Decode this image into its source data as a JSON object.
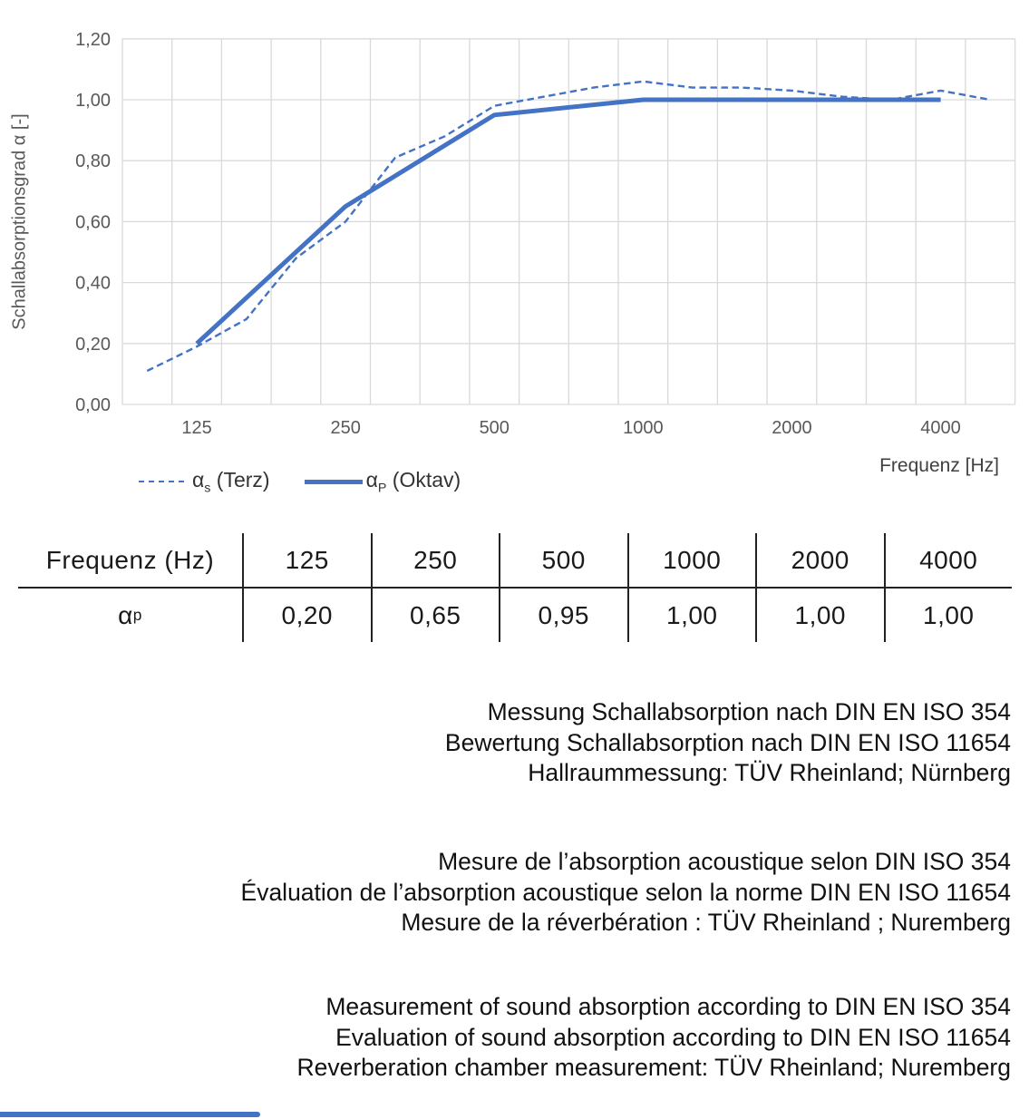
{
  "chart": {
    "y_axis_title": "Schallabsorptionsgrad α [-]",
    "x_axis_title": "Frequenz [Hz]",
    "legend": [
      {
        "symbol": "α",
        "sub": "s",
        "rest": " (Terz)",
        "style": "dashed"
      },
      {
        "symbol": "α",
        "sub": "P",
        "rest": " (Oktav)",
        "style": "solid"
      }
    ]
  },
  "chart_data": {
    "type": "line",
    "categories": [
      100,
      125,
      160,
      200,
      250,
      315,
      400,
      500,
      630,
      800,
      1000,
      1250,
      1600,
      2000,
      2500,
      3150,
      4000,
      5000
    ],
    "x_tick_labels": [
      "125",
      "250",
      "500",
      "1000",
      "2000",
      "4000"
    ],
    "x_tick_indices": [
      1,
      4,
      7,
      10,
      13,
      16
    ],
    "y_ticks": [
      "0,00",
      "0,20",
      "0,40",
      "0,60",
      "0,80",
      "1,00",
      "1,20"
    ],
    "ylim": [
      0,
      1.2
    ],
    "xlabel": "Frequenz [Hz]",
    "ylabel": "Schallabsorptionsgrad α [-]",
    "grid": true,
    "legend_position": "bottom-left",
    "line_color": "#4472C4",
    "series": [
      {
        "name": "αs (Terz)",
        "style": "dashed",
        "values": [
          0.11,
          0.19,
          0.28,
          0.48,
          0.6,
          0.81,
          0.88,
          0.98,
          1.01,
          1.04,
          1.06,
          1.04,
          1.04,
          1.03,
          1.01,
          1.0,
          1.03,
          1.0
        ]
      },
      {
        "name": "αP (Oktav)",
        "style": "solid",
        "indices": [
          1,
          4,
          7,
          10,
          13,
          16
        ],
        "values": [
          0.2,
          0.65,
          0.95,
          1.0,
          1.0,
          1.0
        ]
      }
    ]
  },
  "table": {
    "header": [
      "Frequenz (Hz)",
      "125",
      "250",
      "500",
      "1000",
      "2000",
      "4000"
    ],
    "row_label": {
      "symbol": "α",
      "sub": "p"
    },
    "values": [
      "0,20",
      "0,65",
      "0,95",
      "1,00",
      "1,00",
      "1,00"
    ]
  },
  "notes": {
    "german": [
      "Messung Schallabsorption nach DIN EN ISO 354",
      "Bewertung Schallabsorption nach DIN EN ISO 11654",
      "Hallraummessung: TÜV Rheinland; Nürnberg"
    ],
    "french": [
      "Mesure de l’absorption acoustique selon DIN ISO 354",
      "Évaluation de l’absorption acoustique selon la norme DIN EN ISO 11654",
      "Mesure de la réverbération : TÜV Rheinland ; Nuremberg"
    ],
    "english": [
      "Measurement of sound absorption according to DIN EN ISO 354",
      "Evaluation of sound absorption according to DIN EN ISO 11654",
      "Reverberation chamber measurement: TÜV Rheinland; Nuremberg"
    ]
  },
  "colors": {
    "line_blue": "#4472C4",
    "gridline": "#D9D9D9",
    "tick_text": "#595959",
    "table_line": "#222222",
    "body_text": "#111111"
  }
}
